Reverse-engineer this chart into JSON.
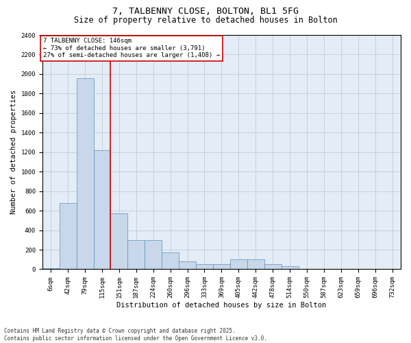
{
  "title_line1": "7, TALBENNY CLOSE, BOLTON, BL1 5FG",
  "title_line2": "Size of property relative to detached houses in Bolton",
  "xlabel": "Distribution of detached houses by size in Bolton",
  "ylabel": "Number of detached properties",
  "bar_color": "#c8d8ea",
  "bar_edge_color": "#6090b8",
  "grid_color": "#b8c8d8",
  "background_color": "#e4ecf5",
  "vline_color": "#cc0000",
  "categories": [
    "6sqm",
    "42sqm",
    "79sqm",
    "115sqm",
    "151sqm",
    "187sqm",
    "224sqm",
    "260sqm",
    "296sqm",
    "333sqm",
    "369sqm",
    "405sqm",
    "442sqm",
    "478sqm",
    "514sqm",
    "550sqm",
    "587sqm",
    "623sqm",
    "659sqm",
    "696sqm",
    "732sqm"
  ],
  "values": [
    10,
    680,
    1960,
    1220,
    570,
    300,
    295,
    170,
    80,
    55,
    50,
    105,
    105,
    55,
    28,
    5,
    2,
    1,
    0,
    0,
    0
  ],
  "vline_position": 3.5,
  "annotation_line1": "7 TALBENNY CLOSE: 146sqm",
  "annotation_line2": "← 73% of detached houses are smaller (3,791)",
  "annotation_line3": "27% of semi-detached houses are larger (1,408) →",
  "ylim": [
    0,
    2400
  ],
  "yticks": [
    0,
    200,
    400,
    600,
    800,
    1000,
    1200,
    1400,
    1600,
    1800,
    2000,
    2200,
    2400
  ],
  "footer_text": "Contains HM Land Registry data © Crown copyright and database right 2025.\nContains public sector information licensed under the Open Government Licence v3.0.",
  "title_fontsize": 9.5,
  "subtitle_fontsize": 8.5,
  "axis_label_fontsize": 7.5,
  "tick_fontsize": 6.5,
  "annotation_fontsize": 6.5,
  "footer_fontsize": 5.5
}
